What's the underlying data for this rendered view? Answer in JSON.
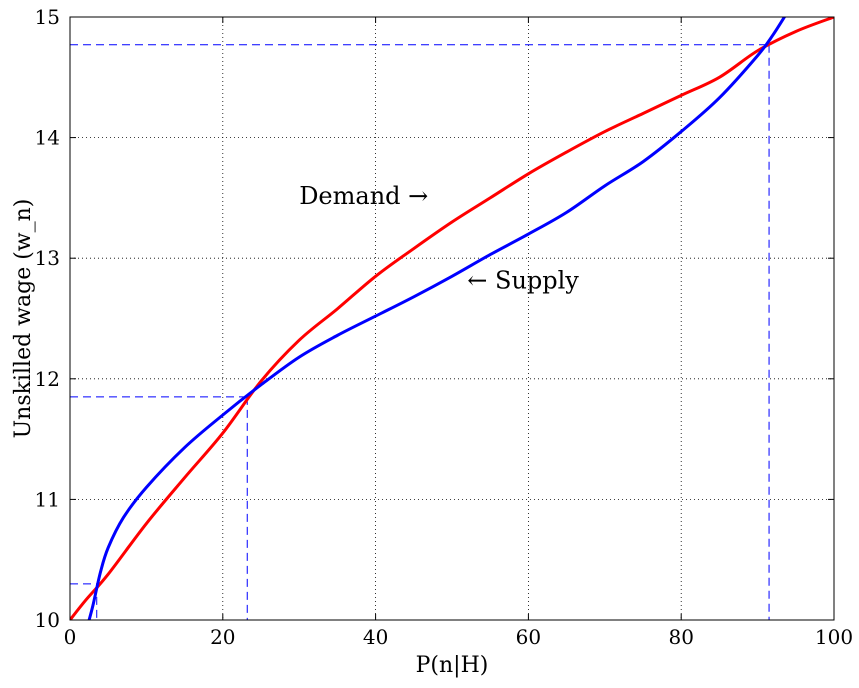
{
  "chart_data": {
    "type": "line",
    "xlabel": "P(n|H)",
    "ylabel": "Unskilled wage (w_n)",
    "xlim": [
      0,
      100
    ],
    "ylim": [
      10,
      15
    ],
    "xticks": [
      0,
      20,
      40,
      60,
      80,
      100
    ],
    "yticks": [
      10,
      11,
      12,
      13,
      14,
      15
    ],
    "grid": true,
    "series": [
      {
        "name": "Demand",
        "color": "#ff0000",
        "x": [
          0,
          2,
          5,
          10,
          15,
          20,
          25,
          30,
          35,
          40,
          45,
          50,
          55,
          60,
          65,
          70,
          75,
          80,
          85,
          90,
          95,
          100
        ],
        "y": [
          10.0,
          10.16,
          10.38,
          10.8,
          11.18,
          11.55,
          11.98,
          12.32,
          12.58,
          12.85,
          13.08,
          13.3,
          13.5,
          13.7,
          13.88,
          14.05,
          14.2,
          14.35,
          14.5,
          14.72,
          14.88,
          15.0
        ]
      },
      {
        "name": "Supply",
        "color": "#0000ff",
        "x": [
          2.5,
          3,
          4,
          5,
          7,
          10,
          15,
          20,
          25,
          30,
          35,
          40,
          45,
          50,
          55,
          60,
          65,
          70,
          75,
          80,
          85,
          90,
          92,
          94
        ],
        "y": [
          10.0,
          10.12,
          10.4,
          10.6,
          10.85,
          11.1,
          11.43,
          11.7,
          11.95,
          12.18,
          12.36,
          12.52,
          12.68,
          12.85,
          13.03,
          13.2,
          13.38,
          13.6,
          13.8,
          14.05,
          14.33,
          14.68,
          14.85,
          15.05
        ]
      }
    ],
    "annotations": [
      {
        "text": "Demand →",
        "x": 30,
        "y": 13.45
      },
      {
        "text": "← Supply",
        "x": 52,
        "y": 12.75
      }
    ],
    "reference_lines": [
      {
        "x": 3.5,
        "y": 10.3
      },
      {
        "x": 23.2,
        "y": 11.85
      },
      {
        "x": 91.5,
        "y": 14.77
      }
    ]
  }
}
